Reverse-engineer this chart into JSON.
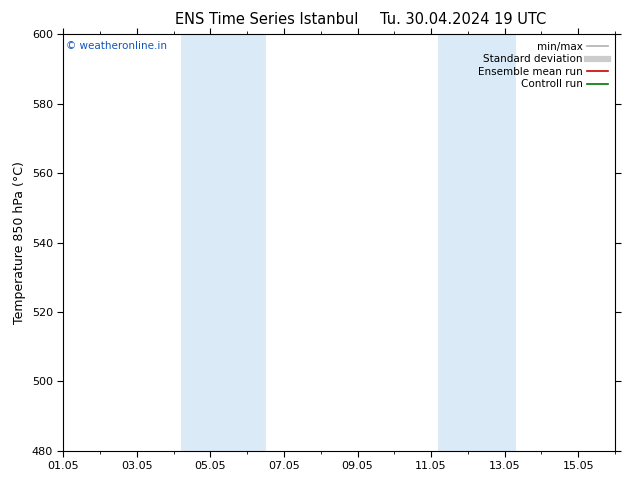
{
  "title": "ENS Time Series Istanbul",
  "title2": "Tu. 30.04.2024 19 UTC",
  "ylabel": "Temperature 850 hPa (°C)",
  "ylim": [
    480,
    600
  ],
  "yticks": [
    480,
    500,
    520,
    540,
    560,
    580,
    600
  ],
  "xlim": [
    0,
    15
  ],
  "xtick_labels": [
    "01.05",
    "03.05",
    "05.05",
    "07.05",
    "09.05",
    "11.05",
    "13.05",
    "15.05"
  ],
  "xtick_positions": [
    0,
    2,
    4,
    6,
    8,
    10,
    12,
    14
  ],
  "shaded_bands": [
    {
      "xmin": 3.2,
      "xmax": 5.5
    },
    {
      "xmin": 10.2,
      "xmax": 12.3
    }
  ],
  "shade_color": "#daeaf7",
  "background_color": "#ffffff",
  "watermark": "© weatheronline.in",
  "watermark_color": "#1155bb",
  "legend_items": [
    {
      "label": "min/max",
      "color": "#b0b0b0",
      "lw": 1.2
    },
    {
      "label": "Standard deviation",
      "color": "#cccccc",
      "lw": 4.5
    },
    {
      "label": "Ensemble mean run",
      "color": "#cc0000",
      "lw": 1.2
    },
    {
      "label": "Controll run",
      "color": "#007700",
      "lw": 1.2
    }
  ],
  "title_fontsize": 10.5,
  "ylabel_fontsize": 9,
  "tick_fontsize": 8,
  "legend_fontsize": 7.5,
  "watermark_fontsize": 7.5
}
